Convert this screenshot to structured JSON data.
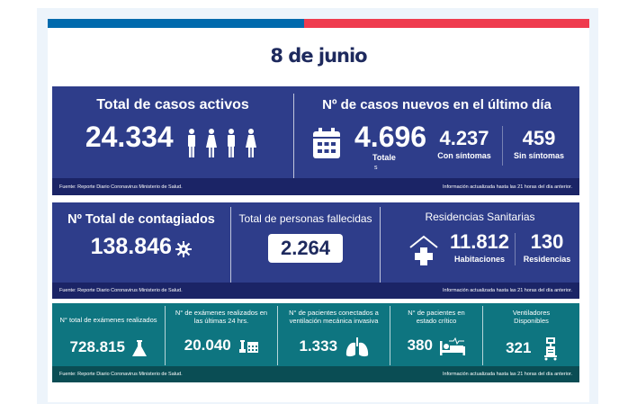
{
  "title": "8 de junio",
  "colors": {
    "stripe_blue": "#006aad",
    "stripe_red": "#ef3b4e",
    "panel_blue": "#2e3d8a",
    "panel_teal": "#0e7580"
  },
  "footer": {
    "source": "Fuente: Reporte Diario Coronavirus Ministerio de Salud.",
    "updated": "Información actualizada hasta las 21 horas  del día anterior."
  },
  "panel1": {
    "active": {
      "label": "Total de casos activos",
      "value": "24.334"
    },
    "new": {
      "label": "Nº de casos nuevos en el último día",
      "total": "4.696",
      "total_label": "Totale",
      "total_label2": "s",
      "with": "4.237",
      "with_label": "Con síntomas",
      "without": "459",
      "without_label": "Sin síntomas"
    }
  },
  "panel2": {
    "infected": {
      "label": "Nº Total de contagiados",
      "value": "138.846"
    },
    "deaths": {
      "label": "Total de personas fallecidas",
      "value": "2.264"
    },
    "residences": {
      "label": "Residencias Sanitarias",
      "rooms": "11.812",
      "rooms_label": "Habitaciones",
      "res": "130",
      "res_label": "Residencias"
    }
  },
  "panel3": [
    {
      "label": "N° total de exámenes realizados",
      "value": "728.815",
      "icon": "flask-icon"
    },
    {
      "label": "N° de exámenes realizados en las últimas 24 hrs.",
      "value": "20.040",
      "icon": "flask-calendar-icon"
    },
    {
      "label": "N° de pacientes conectados a ventilación mecánica invasiva",
      "value": "1.333",
      "icon": "lungs-icon"
    },
    {
      "label": "N° de pacientes  en estado crítico",
      "value": "380",
      "icon": "hospital-bed-icon"
    },
    {
      "label": "Ventiladores Disponibles",
      "value": "321",
      "icon": "ventilator-icon"
    }
  ]
}
